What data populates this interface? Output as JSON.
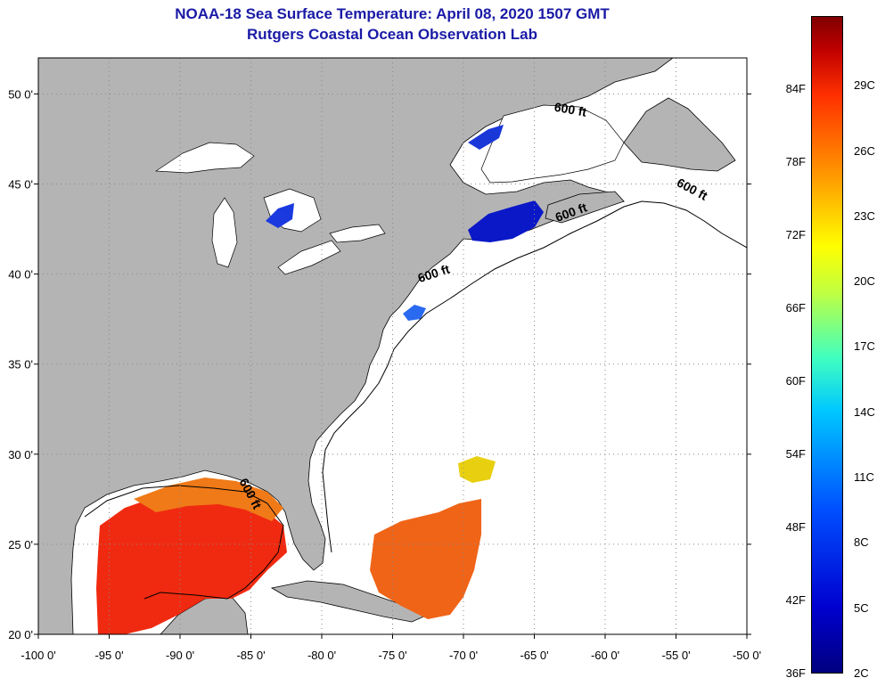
{
  "title": "NOAA-18 Sea Surface Temperature:  April 08, 2020 1507 GMT",
  "subtitle": "Rutgers Coastal Ocean Observation Lab",
  "map": {
    "lon_range": [
      -100,
      -50
    ],
    "lat_range": [
      20,
      52
    ],
    "x_ticks": [
      {
        "value": -100,
        "label": "-100 0'"
      },
      {
        "value": -95,
        "label": "-95 0'"
      },
      {
        "value": -90,
        "label": "-90 0'"
      },
      {
        "value": -85,
        "label": "-85 0'"
      },
      {
        "value": -80,
        "label": "-80 0'"
      },
      {
        "value": -75,
        "label": "-75 0'"
      },
      {
        "value": -70,
        "label": "-70 0'"
      },
      {
        "value": -65,
        "label": "-65 0'"
      },
      {
        "value": -60,
        "label": "-60 0'"
      },
      {
        "value": -55,
        "label": "-55 0'"
      },
      {
        "value": -50,
        "label": "-50 0'"
      }
    ],
    "y_ticks": [
      {
        "value": 50,
        "label": "50 0'"
      },
      {
        "value": 45,
        "label": "45 0'"
      },
      {
        "value": 40,
        "label": "40 0'"
      },
      {
        "value": 35,
        "label": "35 0'"
      },
      {
        "value": 30,
        "label": "30 0'"
      },
      {
        "value": 25,
        "label": "25 0'"
      },
      {
        "value": 20,
        "label": "20 0'"
      }
    ],
    "contour_label": "600 ft",
    "contour_labels_at": [
      {
        "lon": -62.5,
        "lat": 48.9,
        "angle": 10
      },
      {
        "lon": -54,
        "lat": 44.5,
        "angle": 28
      },
      {
        "lon": -62.3,
        "lat": 43.2,
        "angle": -20
      },
      {
        "lon": -72,
        "lat": 39.8,
        "angle": -18
      },
      {
        "lon": -85.3,
        "lat": 27.7,
        "angle": 62
      }
    ],
    "colors": {
      "land": "#b4b4b4",
      "water": "#ffffff",
      "grid": "#8a8a8a",
      "gulf_sst": "#f02a10",
      "atlantic_sst": "#f06418",
      "cold_sst": "#0a18c8",
      "warm_patch": "#e8d010"
    }
  },
  "colorbar": {
    "fahrenheit": [
      {
        "value": 84,
        "label": "84F"
      },
      {
        "value": 78,
        "label": "78F"
      },
      {
        "value": 72,
        "label": "72F"
      },
      {
        "value": 66,
        "label": "66F"
      },
      {
        "value": 60,
        "label": "60F"
      },
      {
        "value": 54,
        "label": "54F"
      },
      {
        "value": 48,
        "label": "48F"
      },
      {
        "value": 42,
        "label": "42F"
      },
      {
        "value": 36,
        "label": "36F"
      }
    ],
    "celsius": [
      {
        "value": 29,
        "label": "29C"
      },
      {
        "value": 26,
        "label": "26C"
      },
      {
        "value": 23,
        "label": "23C"
      },
      {
        "value": 20,
        "label": "20C"
      },
      {
        "value": 17,
        "label": "17C"
      },
      {
        "value": 14,
        "label": "14C"
      },
      {
        "value": 11,
        "label": "11C"
      },
      {
        "value": 8,
        "label": "8C"
      },
      {
        "value": 5,
        "label": "5C"
      },
      {
        "value": 2,
        "label": "2C"
      }
    ]
  }
}
